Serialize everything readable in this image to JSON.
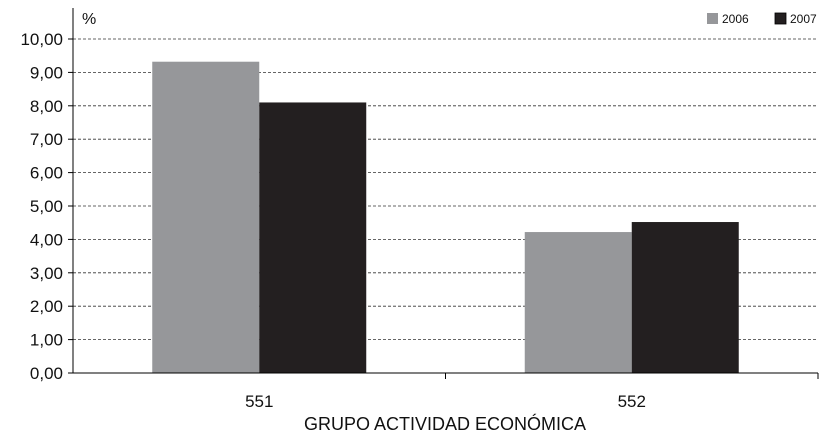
{
  "chart_data": {
    "type": "bar",
    "title": "",
    "unit_label": "%",
    "xlabel": "GRUPO ACTIVIDAD ECONÓMICA",
    "ylabel": "",
    "categories": [
      "551",
      "552"
    ],
    "series": [
      {
        "name": "2006",
        "values": [
          9.32,
          4.22
        ],
        "color": "#96979a"
      },
      {
        "name": "2007",
        "values": [
          8.1,
          4.52
        ],
        "color": "#231f20"
      }
    ],
    "ylim": [
      0,
      10
    ],
    "ytick_step": 1,
    "ytick_labels": [
      "0,00",
      "1,00",
      "2,00",
      "3,00",
      "4,00",
      "5,00",
      "6,00",
      "7,00",
      "8,00",
      "9,00",
      "10,00"
    ],
    "grid": true,
    "grid_style": "dashed",
    "legend_position": "top-right"
  }
}
